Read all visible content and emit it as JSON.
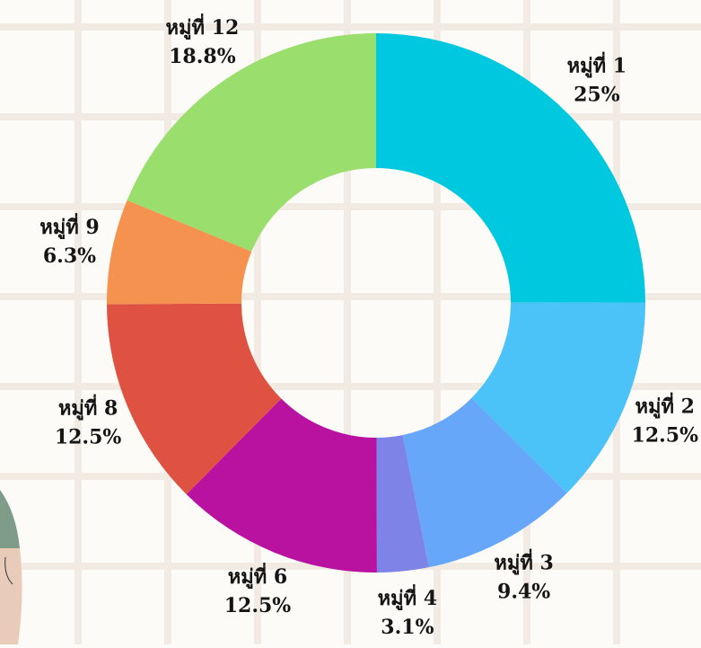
{
  "chart_data": {
    "type": "donut",
    "categories": [
      "หมู่ที่ 1",
      "หมู่ที่ 2",
      "หมู่ที่ 3",
      "หมู่ที่ 4",
      "หมู่ที่ 6",
      "หมู่ที่ 8",
      "หมู่ที่ 9",
      "หมู่ที่ 12"
    ],
    "values": [
      25,
      12.5,
      9.4,
      3.1,
      12.5,
      12.5,
      6.3,
      18.8
    ],
    "value_labels": [
      "25%",
      "12.5%",
      "9.4%",
      "3.1%",
      "12.5%",
      "12.5%",
      "6.3%",
      "18.8%"
    ],
    "colors": [
      "#00c8de",
      "#4cc3f8",
      "#66a7fa",
      "#7e83e8",
      "#b911a0",
      "#df5241",
      "#f5924f",
      "#9ade6e"
    ]
  }
}
